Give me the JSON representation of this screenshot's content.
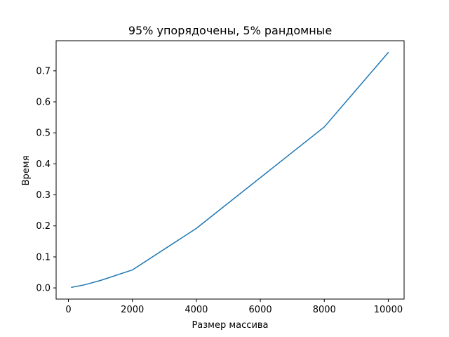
{
  "chart_data": {
    "type": "line",
    "title": "95% упорядочены, 5% рандомные",
    "xlabel": "Размер массива",
    "ylabel": "Время",
    "x_ticks": [
      0,
      2000,
      4000,
      6000,
      8000,
      10000
    ],
    "y_ticks": [
      0.0,
      0.1,
      0.2,
      0.3,
      0.4,
      0.5,
      0.6,
      0.7
    ],
    "x_tick_labels": [
      "0",
      "2000",
      "4000",
      "6000",
      "8000",
      "10000"
    ],
    "y_tick_labels": [
      "0.0",
      "0.1",
      "0.2",
      "0.3",
      "0.4",
      "0.5",
      "0.6",
      "0.7"
    ],
    "xlim": [
      -385,
      10495
    ],
    "ylim": [
      -0.036,
      0.797
    ],
    "grid": false,
    "series": [
      {
        "color": "#1f77b4",
        "x": [
          100,
          500,
          1000,
          2000,
          4000,
          8000,
          10000
        ],
        "y": [
          0.002,
          0.01,
          0.024,
          0.058,
          0.192,
          0.519,
          0.759
        ]
      }
    ]
  }
}
